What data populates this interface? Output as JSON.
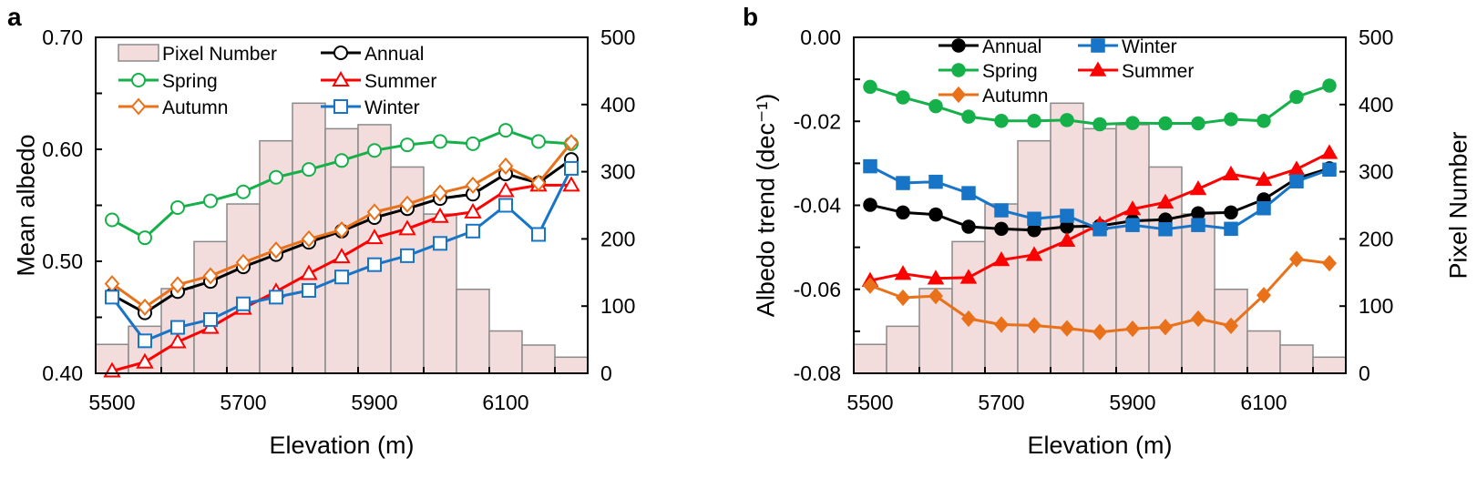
{
  "colors": {
    "Annual": "#000000",
    "Spring": "#16b04a",
    "Summer": "#ff0000",
    "Autumn": "#e8711a",
    "Winter": "#1774c6",
    "bar_fill": "#f2dcdc",
    "bar_stroke": "#8a8a8a"
  },
  "chart_data": [
    {
      "panel_label": "a",
      "type": "line",
      "xlabel": "Elevation (m)",
      "ylabel": "Mean albedo",
      "y2label": "",
      "x": [
        5500,
        5550,
        5600,
        5650,
        5700,
        5750,
        5800,
        5850,
        5900,
        5950,
        6000,
        6050,
        6100,
        6150,
        6200
      ],
      "xticks": [
        5500,
        5700,
        5900,
        6100
      ],
      "xlim": [
        5475,
        6225
      ],
      "ylim": [
        0.4,
        0.7
      ],
      "yticks": [
        "0.40",
        "0.50",
        "0.60",
        "0.70"
      ],
      "y2lim": [
        0,
        500
      ],
      "y2ticks": [
        0,
        100,
        200,
        300,
        400,
        500
      ],
      "marker_style": "open",
      "legend_placement": "top-left",
      "bars": {
        "name": "Pixel Number",
        "values": [
          43,
          70,
          126,
          196,
          252,
          346,
          402,
          364,
          370,
          307,
          237,
          125,
          63,
          42,
          24
        ]
      },
      "series": [
        {
          "name": "Annual",
          "marker": "circle",
          "values": [
            0.47,
            0.454,
            0.473,
            0.482,
            0.495,
            0.506,
            0.517,
            0.527,
            0.539,
            0.547,
            0.556,
            0.56,
            0.578,
            0.57,
            0.591
          ]
        },
        {
          "name": "Spring",
          "marker": "circle",
          "values": [
            0.537,
            0.521,
            0.548,
            0.554,
            0.562,
            0.575,
            0.582,
            0.59,
            0.599,
            0.604,
            0.607,
            0.605,
            0.617,
            0.607,
            0.605
          ]
        },
        {
          "name": "Summer",
          "marker": "triangle",
          "values": [
            0.402,
            0.41,
            0.428,
            0.441,
            0.458,
            0.473,
            0.489,
            0.504,
            0.521,
            0.529,
            0.54,
            0.544,
            0.563,
            0.568,
            0.568
          ]
        },
        {
          "name": "Autumn",
          "marker": "diamond",
          "values": [
            0.48,
            0.459,
            0.479,
            0.487,
            0.499,
            0.51,
            0.52,
            0.528,
            0.544,
            0.551,
            0.561,
            0.568,
            0.585,
            0.57,
            0.606
          ]
        },
        {
          "name": "Winter",
          "marker": "square",
          "values": [
            0.468,
            0.429,
            0.441,
            0.448,
            0.462,
            0.468,
            0.474,
            0.486,
            0.497,
            0.505,
            0.516,
            0.527,
            0.55,
            0.524,
            0.583
          ]
        }
      ],
      "legend_columns": [
        [
          "Pixel Number",
          "Spring",
          "Autumn"
        ],
        [
          "Annual",
          "Summer",
          "Winter"
        ]
      ]
    },
    {
      "panel_label": "b",
      "type": "line",
      "xlabel": "Elevation (m)",
      "ylabel": "Albedo trend (dec⁻¹)",
      "y2label": "Pixel Number",
      "x": [
        5500,
        5550,
        5600,
        5650,
        5700,
        5750,
        5800,
        5850,
        5900,
        5950,
        6000,
        6050,
        6100,
        6150,
        6200
      ],
      "xticks": [
        5500,
        5700,
        5900,
        6100
      ],
      "xlim": [
        5475,
        6225
      ],
      "ylim": [
        -0.08,
        0.0
      ],
      "yticks": [
        "-0.08",
        "-0.06",
        "-0.04",
        "-0.02",
        "0.00"
      ],
      "y2lim": [
        0,
        500
      ],
      "y2ticks": [
        0,
        100,
        200,
        300,
        400,
        500
      ],
      "marker_style": "filled",
      "legend_placement": "top-left",
      "bars": {
        "name": "Pixel Number",
        "values": [
          43,
          70,
          126,
          196,
          252,
          346,
          402,
          364,
          370,
          307,
          237,
          125,
          63,
          42,
          24
        ]
      },
      "series": [
        {
          "name": "Annual",
          "marker": "circle",
          "values": [
            -0.0399,
            -0.0417,
            -0.0422,
            -0.0451,
            -0.0456,
            -0.0459,
            -0.0451,
            -0.0449,
            -0.0437,
            -0.0434,
            -0.0419,
            -0.0417,
            -0.0386,
            -0.0336,
            -0.0312
          ]
        },
        {
          "name": "Spring",
          "marker": "circle",
          "values": [
            -0.0118,
            -0.0143,
            -0.0164,
            -0.0189,
            -0.0199,
            -0.0199,
            -0.0197,
            -0.0207,
            -0.0204,
            -0.0205,
            -0.0205,
            -0.0195,
            -0.0199,
            -0.0142,
            -0.0115
          ]
        },
        {
          "name": "Summer",
          "marker": "triangle",
          "values": [
            -0.0579,
            -0.0563,
            -0.0574,
            -0.0572,
            -0.053,
            -0.0518,
            -0.0484,
            -0.0445,
            -0.0409,
            -0.0393,
            -0.0361,
            -0.0326,
            -0.0339,
            -0.0314,
            -0.0275
          ]
        },
        {
          "name": "Autumn",
          "marker": "diamond",
          "values": [
            -0.0591,
            -0.062,
            -0.0616,
            -0.067,
            -0.0684,
            -0.0686,
            -0.0693,
            -0.0702,
            -0.0694,
            -0.069,
            -0.067,
            -0.0687,
            -0.0614,
            -0.0528,
            -0.0538
          ]
        },
        {
          "name": "Winter",
          "marker": "square",
          "values": [
            -0.0307,
            -0.0347,
            -0.0344,
            -0.0371,
            -0.0412,
            -0.0432,
            -0.0425,
            -0.0457,
            -0.0447,
            -0.0457,
            -0.0447,
            -0.0456,
            -0.0407,
            -0.0343,
            -0.0315
          ]
        }
      ],
      "legend_columns": [
        [
          "Annual",
          "Spring",
          "Autumn"
        ],
        [
          "Winter",
          "Summer"
        ]
      ]
    }
  ]
}
